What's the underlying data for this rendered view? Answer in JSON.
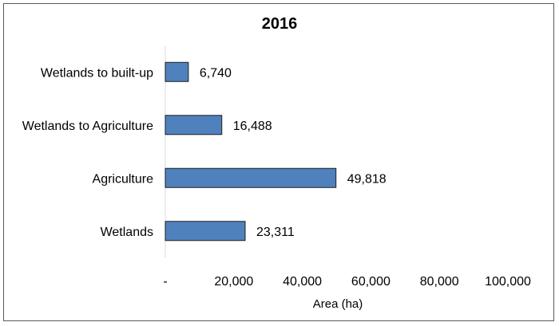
{
  "chart_data": {
    "type": "bar",
    "orientation": "horizontal",
    "title": "2016",
    "categories": [
      "Wetlands to built-up",
      "Wetlands to Agriculture",
      "Agriculture",
      "Wetlands"
    ],
    "values": [
      6740,
      16488,
      49818,
      23311
    ],
    "data_labels": [
      "6,740",
      "16,488",
      "49,818",
      "23,311"
    ],
    "xlabel": "Area (ha)",
    "ylabel": "",
    "xlim": [
      0,
      100000
    ],
    "x_ticks": [
      {
        "value": 0,
        "label": "-"
      },
      {
        "value": 20000,
        "label": "20,000"
      },
      {
        "value": 40000,
        "label": "40,000"
      },
      {
        "value": 60000,
        "label": "60,000"
      },
      {
        "value": 80000,
        "label": "80,000"
      },
      {
        "value": 100000,
        "label": "100,000"
      }
    ],
    "grid": false,
    "legend": "none",
    "bar_color": "#4f81bd",
    "bar_edge_color": "#1f1f1f"
  }
}
